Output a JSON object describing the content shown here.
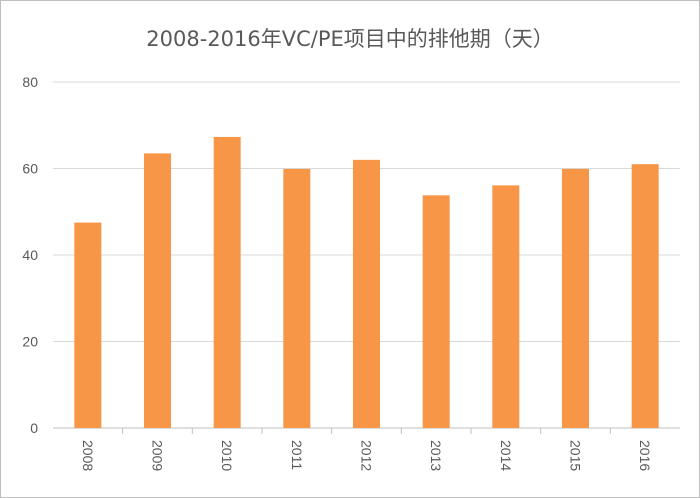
{
  "chart_data": {
    "type": "bar",
    "title": "2008-2016年VC/PE项目中的排他期（天）",
    "categories": [
      "2008",
      "2009",
      "2010",
      "2011",
      "2012",
      "2013",
      "2014",
      "2015",
      "2016"
    ],
    "values": [
      47.5,
      63.5,
      67.3,
      59.9,
      62.0,
      53.8,
      56.1,
      59.9,
      61.0
    ],
    "y_ticks": [
      "0",
      "20",
      "40",
      "60",
      "80"
    ],
    "ylim": [
      0,
      80
    ],
    "xlabel": "",
    "ylabel": "",
    "grid": true,
    "bar_color": "#F79646",
    "gridline_color": "#D9D9D9",
    "x_label_rotation": "vertical"
  }
}
